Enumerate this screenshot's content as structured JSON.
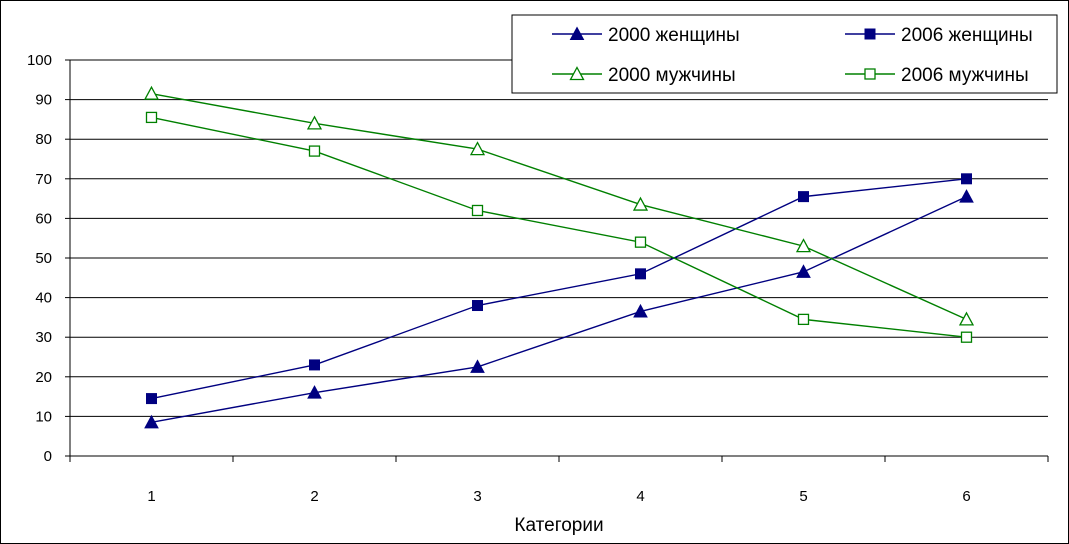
{
  "chart_data": {
    "type": "line",
    "categories": [
      "1",
      "2",
      "3",
      "4",
      "5",
      "6"
    ],
    "xlabel": "Категории",
    "ylabel": "",
    "ylim": [
      0,
      100
    ],
    "yticks": [
      "0",
      "10",
      "20",
      "30",
      "40",
      "50",
      "60",
      "70",
      "80",
      "90",
      "100"
    ],
    "grid": "horizontal",
    "legend_position": "top-right",
    "series": [
      {
        "name": "2000 женщины",
        "color": "#000080",
        "marker": "filled-triangle",
        "values": [
          8.5,
          16,
          22.5,
          36.5,
          46.5,
          65.5
        ]
      },
      {
        "name": "2006 женщины",
        "color": "#000080",
        "marker": "filled-square",
        "values": [
          14.5,
          23,
          38,
          46,
          65.5,
          70
        ]
      },
      {
        "name": "2000 мужчины",
        "color": "#008000",
        "marker": "open-triangle",
        "values": [
          91.5,
          84,
          77.5,
          63.5,
          53,
          34.5
        ]
      },
      {
        "name": "2006 мужчины",
        "color": "#008000",
        "marker": "open-square",
        "values": [
          85.5,
          77,
          62,
          54,
          34.5,
          30
        ]
      }
    ]
  }
}
